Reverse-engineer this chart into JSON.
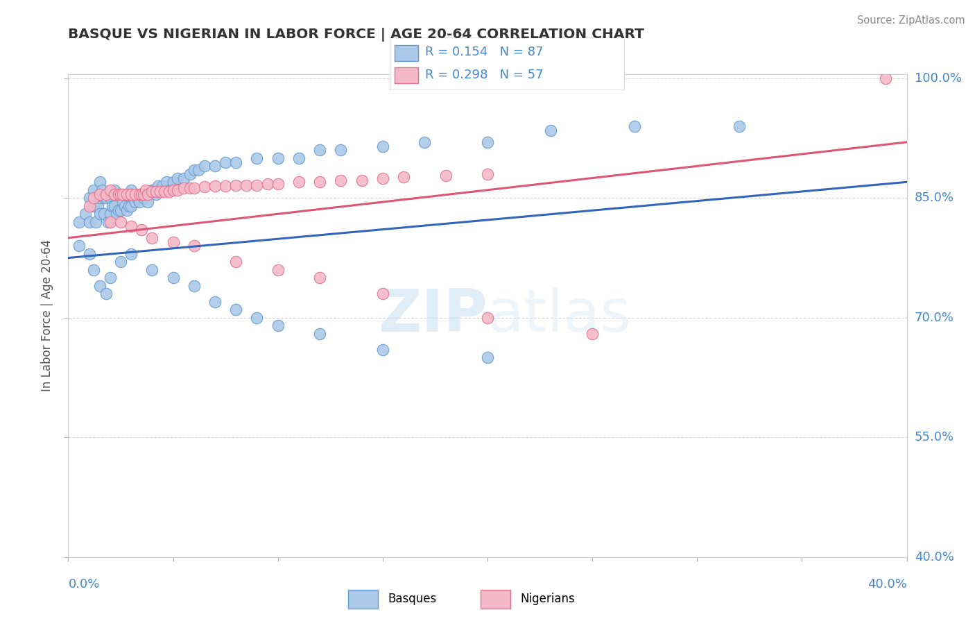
{
  "title": "BASQUE VS NIGERIAN IN LABOR FORCE | AGE 20-64 CORRELATION CHART",
  "source": "Source: ZipAtlas.com",
  "ylabel_label": "In Labor Force | Age 20-64",
  "xmin": 0.0,
  "xmax": 0.4,
  "ymin": 0.4,
  "ymax": 1.005,
  "blue_R": 0.154,
  "blue_N": 87,
  "pink_R": 0.298,
  "pink_N": 57,
  "blue_color": "#aac9e8",
  "blue_edge": "#6699cc",
  "pink_color": "#f5b8c8",
  "pink_edge": "#e07090",
  "blue_line_color": "#3366bb",
  "pink_line_color": "#dd5577",
  "axis_label_color": "#4488cc",
  "grid_color": "#cccccc",
  "blue_x": [
    0.005,
    0.005,
    0.008,
    0.01,
    0.01,
    0.012,
    0.012,
    0.013,
    0.014,
    0.015,
    0.015,
    0.015,
    0.016,
    0.017,
    0.017,
    0.018,
    0.019,
    0.02,
    0.02,
    0.021,
    0.022,
    0.022,
    0.023,
    0.024,
    0.024,
    0.025,
    0.025,
    0.026,
    0.027,
    0.028,
    0.028,
    0.029,
    0.03,
    0.03,
    0.031,
    0.032,
    0.033,
    0.034,
    0.035,
    0.036,
    0.037,
    0.038,
    0.04,
    0.041,
    0.042,
    0.043,
    0.045,
    0.047,
    0.048,
    0.05,
    0.052,
    0.055,
    0.058,
    0.06,
    0.062,
    0.065,
    0.07,
    0.075,
    0.08,
    0.09,
    0.1,
    0.11,
    0.12,
    0.13,
    0.15,
    0.17,
    0.2,
    0.23,
    0.27,
    0.32,
    0.01,
    0.012,
    0.015,
    0.018,
    0.02,
    0.025,
    0.03,
    0.04,
    0.05,
    0.06,
    0.07,
    0.08,
    0.09,
    0.1,
    0.12,
    0.15,
    0.2
  ],
  "blue_y": [
    0.82,
    0.79,
    0.83,
    0.85,
    0.82,
    0.86,
    0.84,
    0.82,
    0.84,
    0.87,
    0.85,
    0.83,
    0.86,
    0.85,
    0.83,
    0.85,
    0.82,
    0.85,
    0.83,
    0.84,
    0.86,
    0.84,
    0.83,
    0.855,
    0.835,
    0.855,
    0.835,
    0.845,
    0.84,
    0.855,
    0.835,
    0.84,
    0.86,
    0.84,
    0.85,
    0.845,
    0.85,
    0.845,
    0.855,
    0.85,
    0.855,
    0.845,
    0.86,
    0.86,
    0.855,
    0.865,
    0.865,
    0.87,
    0.86,
    0.87,
    0.875,
    0.875,
    0.88,
    0.885,
    0.885,
    0.89,
    0.89,
    0.895,
    0.895,
    0.9,
    0.9,
    0.9,
    0.91,
    0.91,
    0.915,
    0.92,
    0.92,
    0.935,
    0.94,
    0.94,
    0.78,
    0.76,
    0.74,
    0.73,
    0.75,
    0.77,
    0.78,
    0.76,
    0.75,
    0.74,
    0.72,
    0.71,
    0.7,
    0.69,
    0.68,
    0.66,
    0.65
  ],
  "pink_x": [
    0.01,
    0.012,
    0.015,
    0.018,
    0.02,
    0.022,
    0.024,
    0.025,
    0.026,
    0.028,
    0.03,
    0.032,
    0.034,
    0.035,
    0.036,
    0.037,
    0.038,
    0.04,
    0.042,
    0.044,
    0.046,
    0.048,
    0.05,
    0.052,
    0.055,
    0.058,
    0.06,
    0.065,
    0.07,
    0.075,
    0.08,
    0.085,
    0.09,
    0.095,
    0.1,
    0.11,
    0.12,
    0.13,
    0.14,
    0.15,
    0.16,
    0.18,
    0.2,
    0.02,
    0.025,
    0.03,
    0.035,
    0.04,
    0.05,
    0.06,
    0.08,
    0.1,
    0.12,
    0.15,
    0.2,
    0.25,
    0.39
  ],
  "pink_y": [
    0.84,
    0.85,
    0.855,
    0.855,
    0.86,
    0.855,
    0.855,
    0.855,
    0.855,
    0.855,
    0.855,
    0.855,
    0.855,
    0.855,
    0.855,
    0.86,
    0.855,
    0.858,
    0.858,
    0.858,
    0.858,
    0.858,
    0.86,
    0.86,
    0.862,
    0.862,
    0.862,
    0.864,
    0.865,
    0.865,
    0.866,
    0.866,
    0.866,
    0.868,
    0.868,
    0.87,
    0.87,
    0.872,
    0.872,
    0.875,
    0.876,
    0.878,
    0.88,
    0.82,
    0.82,
    0.815,
    0.81,
    0.8,
    0.795,
    0.79,
    0.77,
    0.76,
    0.75,
    0.73,
    0.7,
    0.68,
    1.0
  ],
  "ytick_positions": [
    0.4,
    0.55,
    0.7,
    0.85,
    1.0
  ],
  "ytick_labels": [
    "40.0%",
    "55.0%",
    "70.0%",
    "85.0%",
    "100.0%"
  ]
}
